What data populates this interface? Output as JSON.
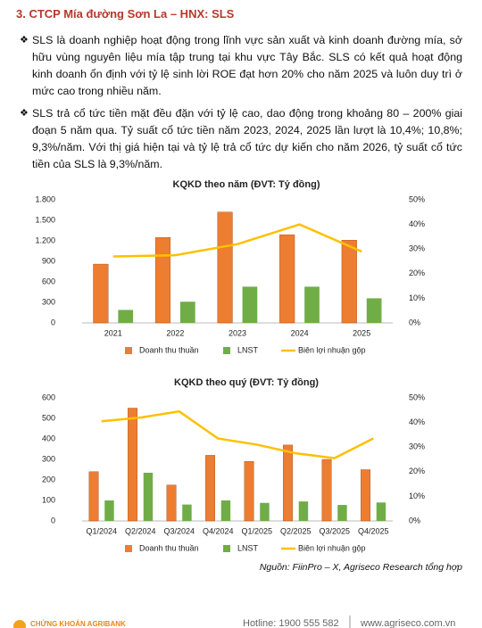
{
  "heading": "3. CTCP Mía đường Sơn La – HNX: SLS",
  "paragraphs": [
    "SLS là doanh nghiệp hoạt động trong lĩnh vực sản xuất và kinh doanh đường mía, sở hữu vùng nguyên liệu mía tập trung tại khu vực Tây Bắc. SLS có kết quả hoạt động kinh doanh ổn định với tỷ lệ sinh lời ROE đạt hơn 20% cho năm 2025 và luôn duy trì ở mức cao trong nhiều năm.",
    "SLS trả cổ tức tiền mặt đều đặn với tỷ lệ cao, dao động trong khoảng 80 – 200% giai đoạn 5 năm qua. Tỷ suất cổ tức tiền năm 2023, 2024, 2025 lần lượt là 10,4%; 10,8%; 9,3%/năm. Với thị giá hiện tại và tỷ lệ trả cổ tức dự kiến cho năm 2026, tỷ suất cổ tức tiền của SLS là 9,3%/năm."
  ],
  "chart_data": [
    {
      "type": "combo",
      "title": "KQKD theo năm (ĐVT: Tỷ đồng)",
      "categories": [
        "2021",
        "2022",
        "2023",
        "2024",
        "2025"
      ],
      "series": [
        {
          "name": "Doanh thu thuần",
          "type": "bar",
          "color": "#ED7D31",
          "values": [
            860,
            1250,
            1620,
            1290,
            1210
          ]
        },
        {
          "name": "LNST",
          "type": "bar",
          "color": "#70AD47",
          "values": [
            190,
            310,
            530,
            530,
            360
          ]
        },
        {
          "name": "Biên lợi nhuận gộp",
          "type": "line",
          "axis": "y2",
          "color": "#FFC000",
          "values": [
            27,
            27.5,
            32,
            40,
            29
          ]
        }
      ],
      "ylim": [
        0,
        1800
      ],
      "yticks": [
        0,
        300,
        600,
        900,
        {
          "value": 1200,
          "label": "1.200"
        },
        {
          "value": 1500,
          "label": "1.500"
        },
        {
          "value": 1800,
          "label": "1.800"
        }
      ],
      "y2lim": [
        0,
        50
      ],
      "y2ticks": [
        {
          "value": 0,
          "label": "0%"
        },
        {
          "value": 10,
          "label": "10%"
        },
        {
          "value": 20,
          "label": "20%"
        },
        {
          "value": 30,
          "label": "30%"
        },
        {
          "value": 40,
          "label": "40%"
        },
        {
          "value": 50,
          "label": "50%"
        }
      ],
      "grid": false,
      "legend": "bottom"
    },
    {
      "type": "combo",
      "title": "KQKD theo quý (ĐVT: Tỷ đồng)",
      "categories": [
        "Q1/2024",
        "Q2/2024",
        "Q3/2024",
        "Q4/2024",
        "Q1/2025",
        "Q2/2025",
        "Q3/2025",
        "Q4/2025"
      ],
      "series": [
        {
          "name": "Doanh thu thuần",
          "type": "bar",
          "color": "#ED7D31",
          "values": [
            240,
            550,
            175,
            320,
            290,
            370,
            300,
            250
          ]
        },
        {
          "name": "LNST",
          "type": "bar",
          "color": "#70AD47",
          "values": [
            100,
            235,
            80,
            100,
            88,
            95,
            78,
            90
          ]
        },
        {
          "name": "Biên lợi nhuận gộp",
          "type": "line",
          "axis": "y2",
          "color": "#FFC000",
          "values": [
            40.5,
            42,
            44.5,
            33.5,
            31,
            27.5,
            25.5,
            33.5
          ]
        }
      ],
      "ylim": [
        0,
        600
      ],
      "yticks": [
        0,
        100,
        200,
        300,
        400,
        500,
        600
      ],
      "y2lim": [
        0,
        50
      ],
      "y2ticks": [
        {
          "value": 0,
          "label": "0%"
        },
        {
          "value": 10,
          "label": "10%"
        },
        {
          "value": 20,
          "label": "20%"
        },
        {
          "value": 30,
          "label": "30%"
        },
        {
          "value": 40,
          "label": "40%"
        },
        {
          "value": 50,
          "label": "50%"
        }
      ],
      "grid": false,
      "legend": "bottom"
    }
  ],
  "source": "Nguồn: FiinPro – X, Agriseco Research tổng hợp",
  "footer": {
    "brand": "CHỨNG KHOÁN AGRIBANK",
    "hotline": "Hotline: 1900 555 582",
    "website": "www.agriseco.com.vn"
  }
}
